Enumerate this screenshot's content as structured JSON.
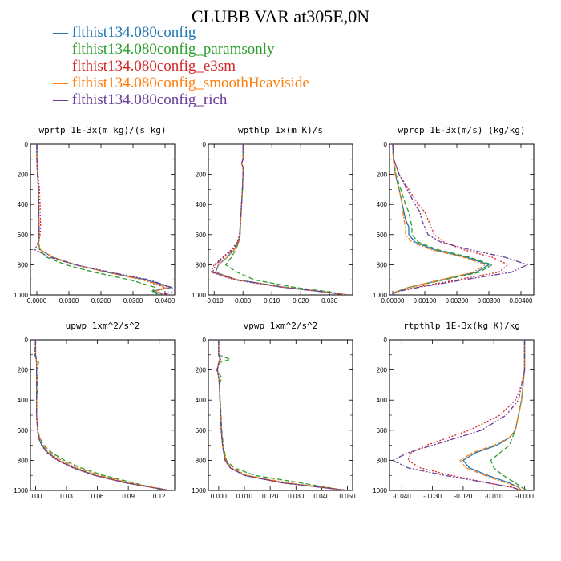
{
  "title": "CLUBB VAR at305E,0N",
  "colors": {
    "blue": "#1f77b4",
    "green": "#2ca02c",
    "red": "#d62728",
    "orange": "#ff7f0e",
    "purple": "#6a3d9a"
  },
  "legend": [
    {
      "label": "flthist134.080config",
      "color": "#1f77b4",
      "dash": "solid"
    },
    {
      "label": "flthist134.080config_paramsonly",
      "color": "#2ca02c",
      "dash": "dashed"
    },
    {
      "label": "flthist134.080config_e3sm",
      "color": "#d62728",
      "dash": "dotted"
    },
    {
      "label": "flthist134.080config_smoothHeaviside",
      "color": "#ff7f0e",
      "dash": "dashdot"
    },
    {
      "label": "flthist134.080config_rich",
      "color": "#6a3d9a",
      "dash": "dashdotdot"
    }
  ],
  "chart_data": [
    {
      "type": "line",
      "title": "wprtp  1E-3x(m kg)/(s kg)",
      "xlim": [
        -0.002,
        0.043
      ],
      "ylim": [
        1000,
        0
      ],
      "xticks": [
        0.0,
        0.01,
        0.02,
        0.03,
        0.04
      ],
      "xtick_labels": [
        "0.0000",
        "0.0100",
        "0.0200",
        "0.0300",
        "0.0400"
      ],
      "yticks": [
        0,
        200,
        400,
        600,
        800,
        1000
      ],
      "ytick_labels": [
        "0",
        "200",
        "400",
        "600",
        "800",
        "1000"
      ],
      "y": [
        0,
        100,
        200,
        300,
        400,
        500,
        550,
        600,
        650,
        700,
        750,
        800,
        850,
        900,
        950,
        975,
        1000
      ],
      "series": [
        {
          "color": "blue",
          "x": [
            0,
            0,
            0.0002,
            0.0005,
            0.0006,
            0.0006,
            0.0007,
            0.0007,
            0.0005,
            0.001,
            0.005,
            0.012,
            0.022,
            0.034,
            0.042,
            0.036,
            0.04
          ]
        },
        {
          "color": "green",
          "x": [
            0,
            0,
            0.0002,
            0.0005,
            0.0006,
            0.0006,
            0.0007,
            0.0007,
            0.0006,
            0.0008,
            0.003,
            0.009,
            0.018,
            0.029,
            0.037,
            0.036,
            0.038
          ]
        },
        {
          "color": "red",
          "x": [
            0,
            0,
            0.0004,
            0.0008,
            0.001,
            0.0011,
            0.0012,
            0.001,
            0.0006,
            0.001,
            0.005,
            0.012,
            0.022,
            0.033,
            0.04,
            0.037,
            0.041
          ]
        },
        {
          "color": "orange",
          "x": [
            0,
            0,
            0.0002,
            0.0005,
            0.0006,
            0.0006,
            0.0007,
            0.0007,
            0.0005,
            0.001,
            0.005,
            0.012,
            0.022,
            0.033,
            0.041,
            0.037,
            0.04
          ]
        },
        {
          "color": "purple",
          "x": [
            0,
            0,
            0.0002,
            0.0005,
            0.0006,
            0.0006,
            0.0007,
            0.0007,
            0.0004,
            -0.0006,
            0.004,
            0.012,
            0.023,
            0.035,
            0.042,
            0.043,
            0.039
          ]
        }
      ]
    },
    {
      "type": "line",
      "title": "wpthlp  1x(m K)/s",
      "xlim": [
        -0.012,
        0.038
      ],
      "ylim": [
        1000,
        0
      ],
      "xticks": [
        -0.01,
        0.0,
        0.01,
        0.02,
        0.03
      ],
      "xtick_labels": [
        "-0.010",
        "0.000",
        "0.010",
        "0.020",
        "0.030"
      ],
      "yticks": [
        0,
        200,
        400,
        600,
        800,
        1000
      ],
      "ytick_labels": [
        "0",
        "200",
        "400",
        "600",
        "800",
        "1000"
      ],
      "y": [
        0,
        100,
        130,
        150,
        200,
        300,
        400,
        500,
        600,
        650,
        700,
        750,
        800,
        850,
        900,
        950,
        980,
        1000
      ],
      "series": [
        {
          "color": "blue",
          "x": [
            0,
            0,
            -0.0005,
            0,
            0,
            -0.0002,
            -0.0005,
            -0.0008,
            -0.001,
            -0.0015,
            -0.003,
            -0.0055,
            -0.0085,
            -0.0095,
            -0.002,
            0.015,
            0.028,
            0.036
          ]
        },
        {
          "color": "green",
          "x": [
            0,
            0,
            -0.0005,
            0,
            0,
            -0.0002,
            -0.0005,
            -0.0008,
            -0.001,
            -0.0015,
            -0.0025,
            -0.004,
            -0.006,
            -0.002,
            0.004,
            0.018,
            0.03,
            0.036
          ]
        },
        {
          "color": "red",
          "x": [
            0,
            0,
            -0.0005,
            0,
            0,
            -0.0002,
            -0.0005,
            -0.0008,
            -0.0012,
            -0.002,
            -0.004,
            -0.007,
            -0.01,
            -0.011,
            -0.003,
            0.014,
            0.028,
            0.036
          ]
        },
        {
          "color": "orange",
          "x": [
            0,
            0,
            -0.0005,
            0,
            0,
            -0.0002,
            -0.0005,
            -0.0008,
            -0.001,
            -0.0015,
            -0.003,
            -0.0055,
            -0.0085,
            -0.0095,
            -0.002,
            0.015,
            0.028,
            0.036
          ]
        },
        {
          "color": "purple",
          "x": [
            0,
            0,
            -0.0005,
            0,
            0,
            -0.0002,
            -0.0005,
            -0.0008,
            -0.0012,
            -0.0018,
            -0.0035,
            -0.0065,
            -0.0095,
            -0.0105,
            -0.0025,
            0.014,
            0.028,
            0.036
          ]
        }
      ]
    },
    {
      "type": "line",
      "title": "wprcp  1E-3x(m/s) (kg/kg)",
      "xlim": [
        -0.0001,
        0.0044
      ],
      "ylim": [
        1000,
        0
      ],
      "xticks": [
        0.0,
        0.001,
        0.002,
        0.003,
        0.004
      ],
      "xtick_labels": [
        "0.00000",
        "0.00100",
        "0.00200",
        "0.00300",
        "0.00400"
      ],
      "yticks": [
        0,
        200,
        400,
        600,
        800,
        1000
      ],
      "ytick_labels": [
        "0",
        "200",
        "400",
        "600",
        "800",
        "1000"
      ],
      "y": [
        0,
        100,
        200,
        300,
        400,
        450,
        500,
        550,
        600,
        650,
        700,
        750,
        800,
        850,
        900,
        950,
        980,
        1000
      ],
      "series": [
        {
          "color": "blue",
          "x": [
            0,
            2e-05,
            8e-05,
            0.0002,
            0.0003,
            0.00035,
            0.0004,
            0.0005,
            0.0005,
            0.0007,
            0.0013,
            0.0023,
            0.003,
            0.0026,
            0.0015,
            0.0005,
            0.0001,
            0.0
          ]
        },
        {
          "color": "green",
          "x": [
            0,
            2e-05,
            0.0001,
            0.00025,
            0.0004,
            0.0005,
            0.00055,
            0.0006,
            0.0006,
            0.0008,
            0.0014,
            0.0024,
            0.0031,
            0.0027,
            0.0016,
            0.0005,
            0.0001,
            0.0
          ]
        },
        {
          "color": "red",
          "x": [
            0,
            3e-05,
            0.0002,
            0.0005,
            0.0008,
            0.001,
            0.0011,
            0.0012,
            0.0013,
            0.0016,
            0.0022,
            0.0031,
            0.0036,
            0.0033,
            0.002,
            0.0007,
            0.0001,
            0.0
          ]
        },
        {
          "color": "orange",
          "x": [
            0,
            2e-05,
            8e-05,
            0.0002,
            0.0003,
            0.00032,
            0.00035,
            0.0004,
            0.0004,
            0.0006,
            0.0012,
            0.0022,
            0.0029,
            0.0025,
            0.0015,
            0.0005,
            0.0001,
            0.0
          ]
        },
        {
          "color": "purple",
          "x": [
            0,
            3e-05,
            0.0002,
            0.00045,
            0.0007,
            0.00085,
            0.0009,
            0.001,
            0.0011,
            0.0015,
            0.0024,
            0.0035,
            0.0042,
            0.0037,
            0.0022,
            0.0008,
            0.0001,
            0.0
          ]
        }
      ]
    },
    {
      "type": "line",
      "title": "upwp  1xm^2/s^2",
      "xlim": [
        -0.005,
        0.135
      ],
      "ylim": [
        1000,
        0
      ],
      "xticks": [
        0.0,
        0.03,
        0.06,
        0.09,
        0.12
      ],
      "xtick_labels": [
        "0.00",
        "0.03",
        "0.06",
        "0.09",
        "0.12"
      ],
      "yticks": [
        0,
        200,
        400,
        600,
        800,
        1000
      ],
      "ytick_labels": [
        "0",
        "200",
        "400",
        "600",
        "800",
        "1000"
      ],
      "y": [
        0,
        100,
        150,
        200,
        300,
        400,
        500,
        600,
        650,
        700,
        750,
        800,
        850,
        900,
        950,
        1000
      ],
      "series": [
        {
          "color": "blue",
          "x": [
            0,
            0,
            0.001,
            0.001,
            0.001,
            0.001,
            0.001,
            0.002,
            0.003,
            0.006,
            0.012,
            0.022,
            0.037,
            0.058,
            0.088,
            0.13
          ]
        },
        {
          "color": "green",
          "x": [
            0,
            -0.001,
            0.003,
            0.001,
            0.002,
            0.001,
            0.001,
            0.002,
            0.004,
            0.008,
            0.016,
            0.028,
            0.044,
            0.066,
            0.095,
            0.125
          ]
        },
        {
          "color": "red",
          "x": [
            0,
            0,
            0.001,
            0.001,
            0.001,
            0.001,
            0.001,
            0.002,
            0.003,
            0.006,
            0.011,
            0.021,
            0.036,
            0.057,
            0.087,
            0.13
          ]
        },
        {
          "color": "orange",
          "x": [
            0,
            0,
            0.001,
            0.001,
            0.001,
            0.001,
            0.001,
            0.002,
            0.004,
            0.007,
            0.014,
            0.025,
            0.04,
            0.062,
            0.091,
            0.13
          ]
        },
        {
          "color": "purple",
          "x": [
            0,
            0,
            0.001,
            0.001,
            0.001,
            0.001,
            0.001,
            0.002,
            0.003,
            0.006,
            0.012,
            0.022,
            0.037,
            0.058,
            0.088,
            0.13
          ]
        }
      ]
    },
    {
      "type": "line",
      "title": "vpwp  1xm^2/s^2",
      "xlim": [
        -0.004,
        0.052
      ],
      "ylim": [
        1000,
        0
      ],
      "xticks": [
        0.0,
        0.01,
        0.02,
        0.03,
        0.04,
        0.05
      ],
      "xtick_labels": [
        "0.000",
        "0.010",
        "0.020",
        "0.030",
        "0.040",
        "0.050"
      ],
      "yticks": [
        0,
        200,
        400,
        600,
        800,
        1000
      ],
      "ytick_labels": [
        "0",
        "200",
        "400",
        "600",
        "800",
        "1000"
      ],
      "y": [
        0,
        100,
        130,
        150,
        200,
        250,
        300,
        400,
        500,
        600,
        700,
        800,
        850,
        900,
        950,
        1000
      ],
      "series": [
        {
          "color": "blue",
          "x": [
            0,
            0,
            0.0005,
            0,
            -0.0005,
            0,
            0.0003,
            0.0005,
            0.0008,
            0.001,
            0.0015,
            0.0025,
            0.0045,
            0.01,
            0.025,
            0.05
          ]
        },
        {
          "color": "green",
          "x": [
            0,
            0,
            0.0045,
            0.0005,
            -0.0008,
            0.0012,
            0.0003,
            0.0006,
            0.0009,
            0.0012,
            0.0018,
            0.003,
            0.006,
            0.014,
            0.032,
            0.049
          ]
        },
        {
          "color": "red",
          "x": [
            0,
            0,
            0.0008,
            0,
            -0.0006,
            0,
            0.0003,
            0.0005,
            0.0008,
            0.001,
            0.0015,
            0.0025,
            0.0045,
            0.01,
            0.025,
            0.05
          ]
        },
        {
          "color": "orange",
          "x": [
            0,
            0,
            0.0005,
            0,
            -0.0005,
            0,
            0.0003,
            0.0005,
            0.0008,
            0.001,
            0.0016,
            0.0028,
            0.005,
            0.011,
            0.027,
            0.05
          ]
        },
        {
          "color": "purple",
          "x": [
            0,
            0,
            0.0005,
            0,
            -0.0005,
            0,
            0.0003,
            0.0005,
            0.0008,
            0.001,
            0.0015,
            0.0025,
            0.0045,
            0.01,
            0.025,
            0.05
          ]
        }
      ]
    },
    {
      "type": "line",
      "title": "rtpthlp  1E-3x(kg K)/kg",
      "xlim": [
        -0.044,
        0.003
      ],
      "ylim": [
        1000,
        0
      ],
      "xticks": [
        -0.04,
        -0.03,
        -0.02,
        -0.01,
        0.0
      ],
      "xtick_labels": [
        "-0.040",
        "-0.030",
        "-0.020",
        "-0.010",
        "-0.000"
      ],
      "yticks": [
        0,
        200,
        400,
        600,
        800,
        1000
      ],
      "ytick_labels": [
        "0",
        "200",
        "400",
        "600",
        "800",
        "1000"
      ],
      "y": [
        0,
        100,
        200,
        300,
        400,
        500,
        600,
        650,
        700,
        750,
        800,
        850,
        900,
        950,
        980,
        1000
      ],
      "series": [
        {
          "color": "blue",
          "x": [
            0,
            0,
            0,
            -0.0005,
            -0.001,
            -0.002,
            -0.003,
            -0.005,
            -0.009,
            -0.016,
            -0.02,
            -0.018,
            -0.012,
            -0.005,
            -0.002,
            -0.001
          ]
        },
        {
          "color": "green",
          "x": [
            0,
            0,
            0,
            -0.0005,
            -0.001,
            -0.002,
            -0.003,
            -0.004,
            -0.005,
            -0.008,
            -0.011,
            -0.01,
            -0.007,
            -0.003,
            -0.001,
            0.001
          ]
        },
        {
          "color": "red",
          "x": [
            0,
            0,
            0,
            -0.001,
            -0.003,
            -0.008,
            -0.018,
            -0.025,
            -0.032,
            -0.037,
            -0.038,
            -0.034,
            -0.024,
            -0.012,
            -0.004,
            -0.001
          ]
        },
        {
          "color": "orange",
          "x": [
            0,
            0,
            0,
            -0.0005,
            -0.001,
            -0.002,
            -0.003,
            -0.005,
            -0.01,
            -0.017,
            -0.021,
            -0.019,
            -0.013,
            -0.006,
            -0.002,
            -0.001
          ]
        },
        {
          "color": "purple",
          "x": [
            0,
            0,
            0,
            -0.001,
            -0.002,
            -0.006,
            -0.014,
            -0.022,
            -0.03,
            -0.038,
            -0.043,
            -0.038,
            -0.026,
            -0.012,
            -0.004,
            -0.001
          ]
        }
      ]
    }
  ]
}
